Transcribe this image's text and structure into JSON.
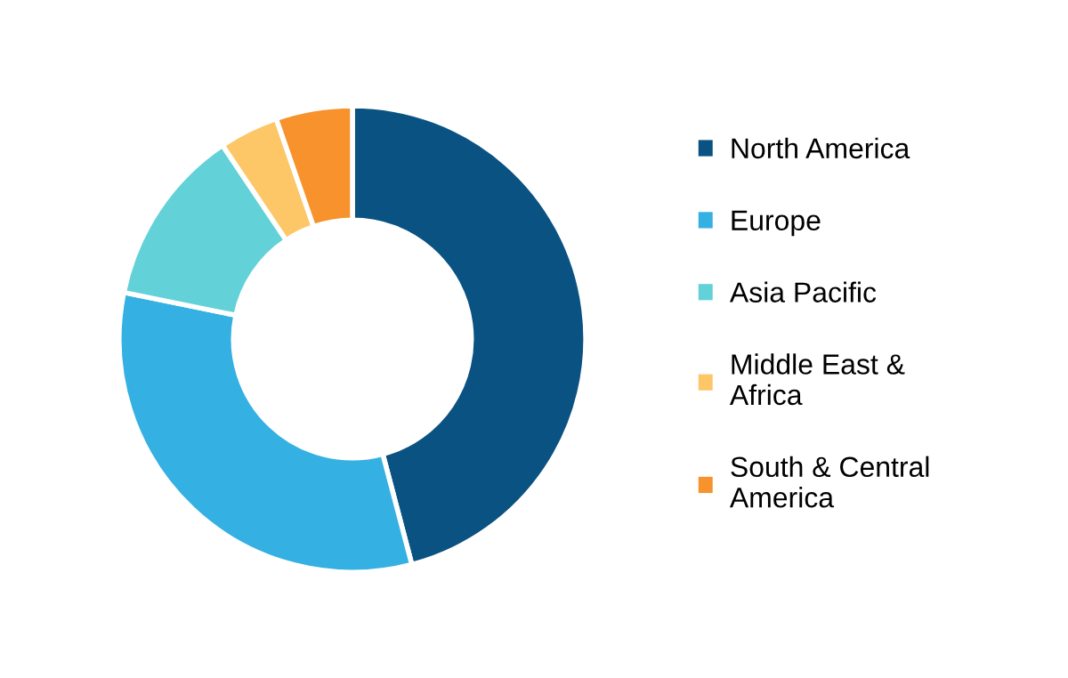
{
  "chart_data": {
    "type": "donut",
    "categories": [
      "North America",
      "Europe",
      "Asia Pacific",
      "Middle East &\nAfrica",
      "South & Central\nAmerica"
    ],
    "values": [
      45.9,
      32.3,
      12.4,
      4.1,
      5.3
    ],
    "colors": [
      "#0a5282",
      "#35b0e3",
      "#63d1d8",
      "#fdc667",
      "#f7922c"
    ],
    "legend": "right"
  }
}
